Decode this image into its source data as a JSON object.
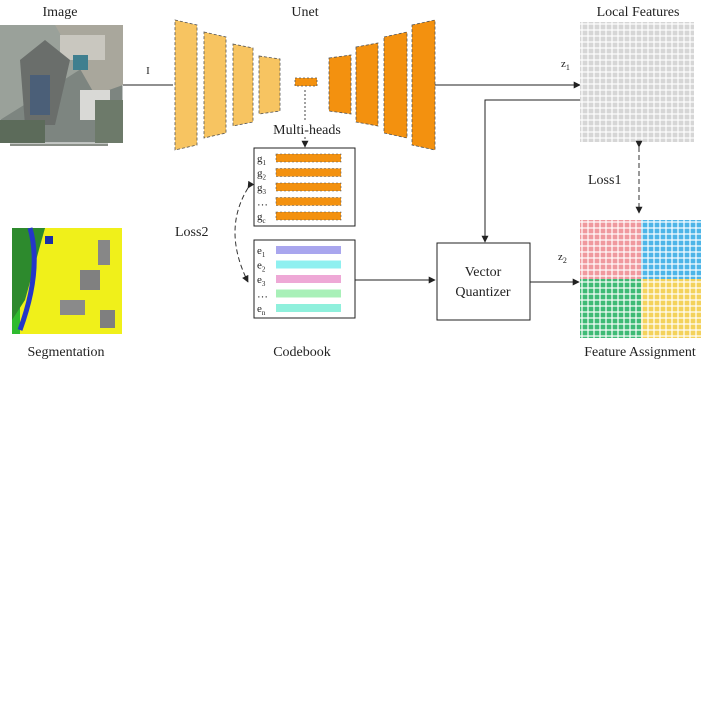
{
  "labels": {
    "image": "Image",
    "unet": "Unet",
    "local_features": "Local Features",
    "multi_heads": "Multi-heads",
    "loss1": "Loss1",
    "loss2": "Loss2",
    "segmentation": "Segmentation",
    "codebook": "Codebook",
    "vector": "Vector",
    "quantizer": "Quantizer",
    "feature_assignment": "Feature Assignment",
    "input_symbol": "I",
    "z1": "z",
    "z1_sub": "1",
    "z2": "z",
    "z2_sub": "2"
  },
  "heads": [
    {
      "sym": "g",
      "sub": "1"
    },
    {
      "sym": "g",
      "sub": "2"
    },
    {
      "sym": "g",
      "sub": "3"
    },
    {
      "sym": "…",
      "sub": ""
    },
    {
      "sym": "g",
      "sub": "c"
    }
  ],
  "codebook": [
    {
      "sym": "e",
      "sub": "1",
      "color": "#a9a6ee"
    },
    {
      "sym": "e",
      "sub": "2",
      "color": "#8ff0f0"
    },
    {
      "sym": "e",
      "sub": "3",
      "color": "#eea8d6"
    },
    {
      "sym": "…",
      "sub": "",
      "color": "#a8f0b8"
    },
    {
      "sym": "e",
      "sub": "n",
      "color": "#8ff0dc"
    }
  ],
  "colors": {
    "encoder": "#f7c461",
    "decoder": "#f3910f",
    "quad_pink": "#f0999e",
    "quad_blue": "#4db5e8",
    "quad_green": "#3fbb76",
    "quad_yellow": "#f4d25c",
    "grid_gray": "#d6d6d6"
  }
}
